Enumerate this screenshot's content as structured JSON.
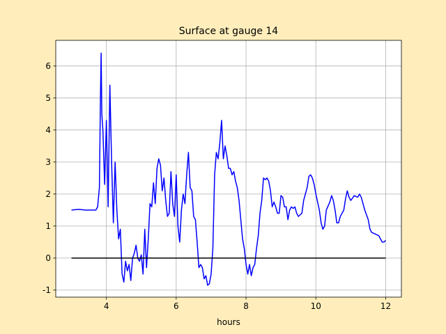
{
  "chart_data": {
    "type": "line",
    "title": "Surface at gauge 14",
    "xlabel": "hours",
    "xlim": [
      2.55,
      12.45
    ],
    "ylim": [
      -1.22,
      6.8
    ],
    "xticks": [
      4,
      6,
      8,
      10,
      12
    ],
    "yticks": [
      -1,
      0,
      1,
      2,
      3,
      4,
      5,
      6
    ],
    "grid": true,
    "series": [
      {
        "color": "#0000ff",
        "x": [
          3.0,
          3.2,
          3.4,
          3.6,
          3.7,
          3.75,
          3.8,
          3.83,
          3.85,
          3.87,
          3.9,
          3.95,
          4.0,
          4.05,
          4.1,
          4.15,
          4.2,
          4.25,
          4.3,
          4.35,
          4.4,
          4.45,
          4.5,
          4.55,
          4.6,
          4.65,
          4.7,
          4.75,
          4.8,
          4.85,
          4.9,
          4.95,
          5.0,
          5.05,
          5.1,
          5.15,
          5.2,
          5.25,
          5.3,
          5.35,
          5.4,
          5.45,
          5.5,
          5.55,
          5.6,
          5.65,
          5.7,
          5.75,
          5.8,
          5.85,
          5.9,
          5.95,
          6.0,
          6.05,
          6.1,
          6.15,
          6.2,
          6.25,
          6.3,
          6.35,
          6.4,
          6.45,
          6.5,
          6.55,
          6.6,
          6.65,
          6.7,
          6.75,
          6.8,
          6.85,
          6.9,
          6.95,
          7.0,
          7.05,
          7.1,
          7.15,
          7.2,
          7.25,
          7.3,
          7.35,
          7.4,
          7.45,
          7.5,
          7.55,
          7.6,
          7.65,
          7.7,
          7.75,
          7.8,
          7.85,
          7.9,
          7.95,
          8.0,
          8.05,
          8.1,
          8.15,
          8.2,
          8.25,
          8.3,
          8.35,
          8.4,
          8.45,
          8.5,
          8.55,
          8.6,
          8.65,
          8.7,
          8.75,
          8.8,
          8.85,
          8.9,
          8.95,
          9.0,
          9.05,
          9.1,
          9.15,
          9.2,
          9.25,
          9.3,
          9.35,
          9.4,
          9.45,
          9.5,
          9.55,
          9.6,
          9.65,
          9.7,
          9.75,
          9.8,
          9.85,
          9.9,
          9.95,
          10.0,
          10.1,
          10.15,
          10.2,
          10.25,
          10.3,
          10.4,
          10.45,
          10.5,
          10.55,
          10.6,
          10.65,
          10.7,
          10.8,
          10.85,
          10.9,
          10.95,
          11.0,
          11.1,
          11.2,
          11.25,
          11.3,
          11.4,
          11.5,
          11.55,
          11.6,
          11.7,
          11.8,
          11.85,
          11.9,
          11.95,
          12.0
        ],
        "values": [
          1.5,
          1.52,
          1.5,
          1.5,
          1.5,
          1.6,
          2.2,
          5.0,
          6.4,
          4.5,
          4.0,
          2.3,
          4.3,
          1.6,
          5.4,
          3.0,
          1.1,
          3.0,
          1.5,
          0.6,
          0.9,
          -0.5,
          -0.75,
          -0.1,
          -0.4,
          -0.2,
          -0.7,
          0.0,
          0.15,
          0.4,
          0.0,
          -0.1,
          0.1,
          -0.5,
          0.9,
          -0.3,
          0.6,
          1.7,
          1.6,
          2.35,
          1.7,
          2.8,
          3.1,
          2.9,
          2.1,
          2.5,
          1.8,
          1.3,
          1.4,
          2.7,
          1.7,
          1.3,
          2.6,
          1.0,
          0.5,
          1.5,
          2.0,
          1.7,
          2.6,
          3.3,
          2.2,
          2.1,
          1.3,
          1.2,
          0.5,
          -0.3,
          -0.2,
          -0.3,
          -0.65,
          -0.55,
          -0.85,
          -0.8,
          -0.5,
          0.3,
          2.6,
          3.3,
          3.1,
          3.6,
          4.3,
          3.1,
          3.5,
          3.2,
          2.8,
          2.8,
          2.6,
          2.7,
          2.4,
          2.2,
          1.8,
          1.2,
          0.6,
          0.3,
          -0.2,
          -0.5,
          -0.2,
          -0.55,
          -0.3,
          -0.2,
          0.3,
          0.7,
          1.4,
          1.8,
          2.5,
          2.45,
          2.5,
          2.4,
          2.1,
          1.6,
          1.75,
          1.6,
          1.4,
          1.4,
          1.95,
          1.9,
          1.6,
          1.6,
          1.2,
          1.5,
          1.6,
          1.55,
          1.6,
          1.4,
          1.3,
          1.35,
          1.4,
          1.8,
          2.0,
          2.2,
          2.55,
          2.6,
          2.5,
          2.3,
          2.0,
          1.5,
          1.1,
          0.9,
          1.0,
          1.5,
          1.75,
          1.95,
          1.8,
          1.5,
          1.1,
          1.1,
          1.3,
          1.5,
          1.85,
          2.1,
          1.9,
          1.8,
          1.95,
          1.9,
          2.0,
          1.9,
          1.5,
          1.2,
          0.9,
          0.8,
          0.75,
          0.7,
          0.6,
          0.5,
          0.5,
          0.55
        ]
      },
      {
        "color": "#000000",
        "x": [
          3,
          12
        ],
        "values": [
          0,
          0
        ]
      }
    ]
  }
}
